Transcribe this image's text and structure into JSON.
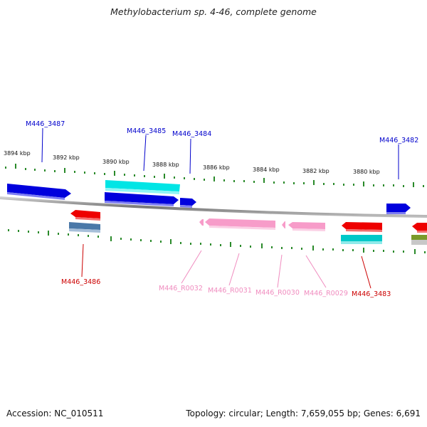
{
  "title": "Methylobacterium sp. 4-46, complete genome",
  "footer": {
    "accession": "Accession: NC_010511",
    "topology": "Topology: circular; Length: 7,659,055 bp; Genes: 6,691"
  },
  "scale_labels": [
    "3894 kbp",
    "3892 kbp",
    "3890 kbp",
    "3888 kbp",
    "3886 kbp",
    "3884 kbp",
    "3882 kbp",
    "3880 kbp"
  ],
  "gene_labels": [
    {
      "text": "M446_3487",
      "color": "#0000cc"
    },
    {
      "text": "M446_3485",
      "color": "#0000cc"
    },
    {
      "text": "M446_3484",
      "color": "#0000cc"
    },
    {
      "text": "M446_3482",
      "color": "#0000cc"
    },
    {
      "text": "M446_3486",
      "color": "#cc0000"
    },
    {
      "text": "M446_R0032",
      "color": "#f08cbf"
    },
    {
      "text": "M446_R0031",
      "color": "#f08cbf"
    },
    {
      "text": "M446_R0030",
      "color": "#f08cbf"
    },
    {
      "text": "M446_R0029",
      "color": "#f08cbf"
    },
    {
      "text": "M446_3483",
      "color": "#cc0000"
    }
  ],
  "colors": {
    "forward_cds": "#0000dd",
    "reverse_cds": "#ee0000",
    "rna": "#f7a3cf",
    "cyan_feature": "#00e0e0",
    "steel_feature": "#4a78a8",
    "tick": "#2a8a2a",
    "backbone": "#888888"
  }
}
